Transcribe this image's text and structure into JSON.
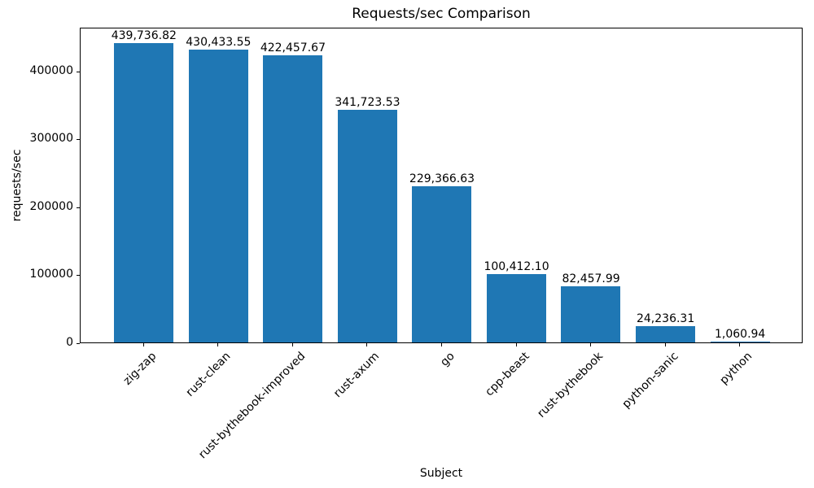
{
  "chart_data": {
    "type": "bar",
    "title": "Requests/sec Comparison",
    "xlabel": "Subject",
    "ylabel": "requests/sec",
    "categories": [
      "zig-zap",
      "rust-clean",
      "rust-bythebook-improved",
      "rust-axum",
      "go",
      "cpp-beast",
      "rust-bythebook",
      "python-sanic",
      "python"
    ],
    "values": [
      439736.82,
      430433.55,
      422457.67,
      341723.53,
      229366.63,
      100412.1,
      82457.99,
      24236.31,
      1060.94
    ],
    "value_labels": [
      "439,736.82",
      "430,433.55",
      "422,457.67",
      "341,723.53",
      "229,366.63",
      "100,412.10",
      "82,457.99",
      "24,236.31",
      "1,060.94"
    ],
    "yticks": [
      0,
      100000,
      200000,
      300000,
      400000
    ],
    "ylim": [
      0,
      464000
    ],
    "bar_color": "#1f77b4",
    "grid": false,
    "legend": "none",
    "bar_width_fraction": 0.8,
    "xtick_rotation_deg": 45
  }
}
